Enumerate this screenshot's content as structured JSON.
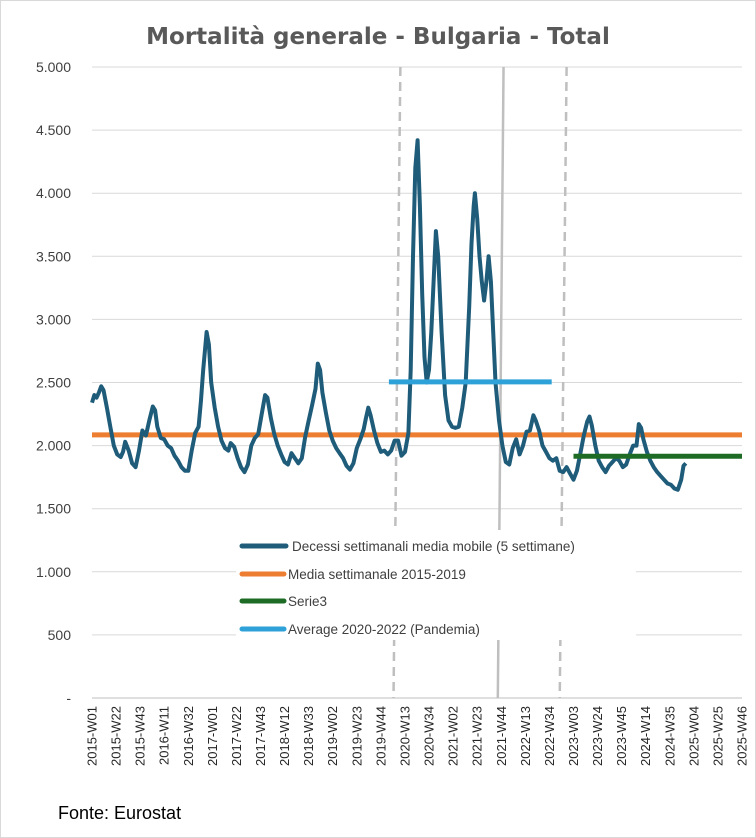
{
  "chart_data": {
    "type": "line",
    "title": "Mortalità generale - Bulgaria - Total",
    "source": "Fonte: Eurostat",
    "ylim": [
      0,
      5000
    ],
    "y_ticks": [
      {
        "value": 0,
        "label": "-"
      },
      {
        "value": 500,
        "label": "500"
      },
      {
        "value": 1000,
        "label": "1.000"
      },
      {
        "value": 1500,
        "label": "1.500"
      },
      {
        "value": 2000,
        "label": "2.000"
      },
      {
        "value": 2500,
        "label": "2.500"
      },
      {
        "value": 3000,
        "label": "3.000"
      },
      {
        "value": 3500,
        "label": "3.500"
      },
      {
        "value": 4000,
        "label": "4.000"
      },
      {
        "value": 4500,
        "label": "4.500"
      },
      {
        "value": 5000,
        "label": "5.000"
      }
    ],
    "x_range": [
      0,
      567
    ],
    "x_ticks": [
      {
        "label": "2015-W01",
        "index": 0
      },
      {
        "label": "2015-W22",
        "index": 21
      },
      {
        "label": "2015-W43",
        "index": 42
      },
      {
        "label": "2016-W11",
        "index": 63
      },
      {
        "label": "2016-W32",
        "index": 84
      },
      {
        "label": "2017-W01",
        "index": 105
      },
      {
        "label": "2017-W22",
        "index": 126
      },
      {
        "label": "2017-W43",
        "index": 147
      },
      {
        "label": "2018-W12",
        "index": 168
      },
      {
        "label": "2018-W33",
        "index": 189
      },
      {
        "label": "2019-W02",
        "index": 210
      },
      {
        "label": "2019-W23",
        "index": 231
      },
      {
        "label": "2019-W44",
        "index": 252
      },
      {
        "label": "2020-W13",
        "index": 273
      },
      {
        "label": "2020-W34",
        "index": 294
      },
      {
        "label": "2021-W02",
        "index": 315
      },
      {
        "label": "2021-W23",
        "index": 336
      },
      {
        "label": "2021-W44",
        "index": 357
      },
      {
        "label": "2022-W13",
        "index": 378
      },
      {
        "label": "2022-W34",
        "index": 399
      },
      {
        "label": "2023-W03",
        "index": 420
      },
      {
        "label": "2023-W24",
        "index": 441
      },
      {
        "label": "2023-W45",
        "index": 462
      },
      {
        "label": "2024-W14",
        "index": 483
      },
      {
        "label": "2024-W35",
        "index": 504
      },
      {
        "label": "2025-W04",
        "index": 525
      },
      {
        "label": "2025-W25",
        "index": 546
      },
      {
        "label": "2025-W46",
        "index": 567
      }
    ],
    "series": [
      {
        "name": "Decessi settimanali media mobile (5 settimane)",
        "color": "#1f5c7a",
        "points": [
          [
            0,
            2340
          ],
          [
            2,
            2400
          ],
          [
            4,
            2380
          ],
          [
            6,
            2420
          ],
          [
            8,
            2470
          ],
          [
            10,
            2440
          ],
          [
            13,
            2300
          ],
          [
            16,
            2150
          ],
          [
            19,
            2000
          ],
          [
            22,
            1930
          ],
          [
            25,
            1910
          ],
          [
            27,
            1950
          ],
          [
            29,
            2030
          ],
          [
            32,
            1960
          ],
          [
            35,
            1860
          ],
          [
            38,
            1830
          ],
          [
            41,
            1960
          ],
          [
            44,
            2120
          ],
          [
            47,
            2080
          ],
          [
            50,
            2200
          ],
          [
            53,
            2310
          ],
          [
            55,
            2280
          ],
          [
            57,
            2150
          ],
          [
            60,
            2060
          ],
          [
            63,
            2050
          ],
          [
            66,
            2000
          ],
          [
            69,
            1980
          ],
          [
            72,
            1920
          ],
          [
            75,
            1880
          ],
          [
            78,
            1830
          ],
          [
            81,
            1800
          ],
          [
            84,
            1800
          ],
          [
            87,
            1960
          ],
          [
            90,
            2100
          ],
          [
            93,
            2150
          ],
          [
            95,
            2350
          ],
          [
            97,
            2600
          ],
          [
            100,
            2900
          ],
          [
            102,
            2800
          ],
          [
            104,
            2500
          ],
          [
            107,
            2300
          ],
          [
            110,
            2150
          ],
          [
            113,
            2040
          ],
          [
            116,
            1980
          ],
          [
            119,
            1960
          ],
          [
            121,
            2020
          ],
          [
            124,
            1990
          ],
          [
            127,
            1900
          ],
          [
            130,
            1830
          ],
          [
            133,
            1790
          ],
          [
            136,
            1850
          ],
          [
            139,
            2000
          ],
          [
            142,
            2060
          ],
          [
            145,
            2090
          ],
          [
            148,
            2250
          ],
          [
            151,
            2400
          ],
          [
            153,
            2380
          ],
          [
            156,
            2220
          ],
          [
            159,
            2090
          ],
          [
            162,
            2000
          ],
          [
            165,
            1930
          ],
          [
            168,
            1870
          ],
          [
            171,
            1850
          ],
          [
            174,
            1940
          ],
          [
            177,
            1900
          ],
          [
            180,
            1860
          ],
          [
            183,
            1900
          ],
          [
            186,
            2070
          ],
          [
            189,
            2200
          ],
          [
            192,
            2320
          ],
          [
            195,
            2450
          ],
          [
            197,
            2650
          ],
          [
            199,
            2600
          ],
          [
            201,
            2420
          ],
          [
            204,
            2260
          ],
          [
            207,
            2120
          ],
          [
            210,
            2040
          ],
          [
            213,
            1980
          ],
          [
            216,
            1940
          ],
          [
            219,
            1900
          ],
          [
            222,
            1840
          ],
          [
            225,
            1810
          ],
          [
            228,
            1860
          ],
          [
            231,
            1980
          ],
          [
            234,
            2050
          ],
          [
            237,
            2130
          ],
          [
            239,
            2220
          ],
          [
            241,
            2300
          ],
          [
            243,
            2240
          ],
          [
            246,
            2120
          ],
          [
            249,
            2020
          ],
          [
            252,
            1950
          ],
          [
            255,
            1960
          ],
          [
            258,
            1930
          ],
          [
            261,
            1960
          ],
          [
            264,
            2040
          ],
          [
            267,
            2040
          ],
          [
            270,
            1920
          ],
          [
            273,
            1950
          ],
          [
            276,
            2100
          ],
          [
            278,
            2600
          ],
          [
            280,
            3500
          ],
          [
            282,
            4200
          ],
          [
            284,
            4420
          ],
          [
            286,
            3900
          ],
          [
            288,
            3200
          ],
          [
            290,
            2700
          ],
          [
            292,
            2500
          ],
          [
            294,
            2600
          ],
          [
            296,
            2900
          ],
          [
            298,
            3300
          ],
          [
            300,
            3700
          ],
          [
            302,
            3500
          ],
          [
            305,
            2900
          ],
          [
            308,
            2400
          ],
          [
            311,
            2200
          ],
          [
            314,
            2150
          ],
          [
            317,
            2140
          ],
          [
            320,
            2150
          ],
          [
            323,
            2300
          ],
          [
            326,
            2500
          ],
          [
            329,
            3100
          ],
          [
            331,
            3600
          ],
          [
            333,
            3900
          ],
          [
            334,
            4000
          ],
          [
            336,
            3800
          ],
          [
            338,
            3500
          ],
          [
            340,
            3300
          ],
          [
            342,
            3150
          ],
          [
            344,
            3300
          ],
          [
            346,
            3500
          ],
          [
            348,
            3300
          ],
          [
            350,
            2900
          ],
          [
            352,
            2500
          ],
          [
            355,
            2200
          ],
          [
            358,
            2000
          ],
          [
            361,
            1870
          ],
          [
            364,
            1850
          ],
          [
            367,
            1980
          ],
          [
            370,
            2050
          ],
          [
            373,
            1930
          ],
          [
            376,
            2000
          ],
          [
            379,
            2110
          ],
          [
            382,
            2120
          ],
          [
            385,
            2240
          ],
          [
            387,
            2200
          ],
          [
            390,
            2120
          ],
          [
            393,
            2000
          ],
          [
            396,
            1950
          ],
          [
            399,
            1900
          ],
          [
            402,
            1880
          ],
          [
            405,
            1900
          ],
          [
            408,
            1800
          ],
          [
            411,
            1790
          ],
          [
            414,
            1830
          ],
          [
            417,
            1780
          ],
          [
            420,
            1730
          ],
          [
            423,
            1800
          ],
          [
            426,
            1940
          ],
          [
            429,
            2080
          ],
          [
            432,
            2190
          ],
          [
            434,
            2230
          ],
          [
            436,
            2160
          ],
          [
            439,
            2000
          ],
          [
            442,
            1880
          ],
          [
            445,
            1830
          ],
          [
            448,
            1790
          ],
          [
            451,
            1840
          ],
          [
            454,
            1870
          ],
          [
            457,
            1900
          ],
          [
            460,
            1880
          ],
          [
            463,
            1830
          ],
          [
            466,
            1850
          ],
          [
            469,
            1930
          ],
          [
            472,
            2000
          ],
          [
            475,
            2000
          ],
          [
            477,
            2170
          ],
          [
            479,
            2140
          ],
          [
            481,
            2050
          ],
          [
            484,
            1950
          ],
          [
            487,
            1880
          ],
          [
            490,
            1830
          ],
          [
            493,
            1790
          ],
          [
            496,
            1760
          ],
          [
            499,
            1730
          ],
          [
            502,
            1700
          ],
          [
            505,
            1690
          ],
          [
            508,
            1660
          ],
          [
            511,
            1650
          ],
          [
            514,
            1730
          ],
          [
            516,
            1840
          ],
          [
            518,
            1860
          ]
        ]
      },
      {
        "name": "Media settimanale 2015-2019",
        "color": "#ed7d31",
        "points": [
          [
            0,
            2085
          ],
          [
            567,
            2085
          ]
        ]
      },
      {
        "name": "Serie3",
        "color": "#1e6b25",
        "points": [
          [
            420,
            1915
          ],
          [
            567,
            1915
          ]
        ]
      },
      {
        "name": "Average 2020-2022 (Pandemia)",
        "color": "#2ea2d8",
        "points": [
          [
            259,
            2505
          ],
          [
            401,
            2505
          ]
        ]
      }
    ],
    "dashed_lines_at": [
      {
        "index_top": 269,
        "index_bottom": 263
      },
      {
        "index_top": 414,
        "index_bottom": 408
      }
    ],
    "solid_line": {
      "index_top": 359,
      "index_bottom": 354
    },
    "legend": [
      {
        "label": "Decessi settimanali media mobile (5 settimane)",
        "color": "#1f5c7a"
      },
      {
        "label": "Media settimanale 2015-2019",
        "color": "#ed7d31"
      },
      {
        "label": "Serie3",
        "color": "#1e6b25"
      },
      {
        "label": "Average 2020-2022 (Pandemia)",
        "color": "#2ea2d8"
      }
    ]
  }
}
